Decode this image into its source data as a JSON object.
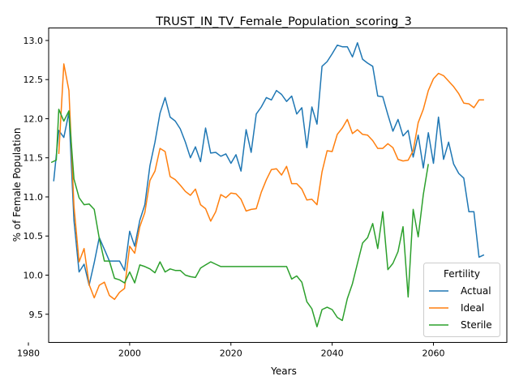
{
  "chart_data": {
    "type": "line",
    "title": "TRUST_IN_TV_Female_Population_scoring_3",
    "xlabel": "Years",
    "ylabel": "% of Female Population",
    "xlim": [
      1984,
      2074.5
    ],
    "ylim": [
      9.14,
      13.16
    ],
    "xticks": [
      1980,
      2000,
      2020,
      2040,
      2060
    ],
    "yticks": [
      9.5,
      10.0,
      10.5,
      11.0,
      11.5,
      12.0,
      12.5,
      13.0
    ],
    "grid": false,
    "legend": {
      "title": "Fertility",
      "placement": "lower-right"
    },
    "series": [
      {
        "name": "Actual",
        "color": "#1f77b4",
        "points": [
          [
            1985,
            11.2
          ],
          [
            1986,
            11.85
          ],
          [
            1987,
            11.76
          ],
          [
            1988,
            12.08
          ],
          [
            1989,
            10.7
          ],
          [
            1990,
            10.04
          ],
          [
            1991,
            10.14
          ],
          [
            1992,
            9.87
          ],
          [
            1993,
            10.16
          ],
          [
            1994,
            10.48
          ],
          [
            1995,
            10.33
          ],
          [
            1996,
            10.18
          ],
          [
            1997,
            10.18
          ],
          [
            1998,
            10.18
          ],
          [
            1999,
            10.06
          ],
          [
            2000,
            10.56
          ],
          [
            2001,
            10.37
          ],
          [
            2002,
            10.7
          ],
          [
            2003,
            10.9
          ],
          [
            2004,
            11.4
          ],
          [
            2005,
            11.7
          ],
          [
            2006,
            12.07
          ],
          [
            2007,
            12.27
          ],
          [
            2008,
            12.02
          ],
          [
            2009,
            11.97
          ],
          [
            2010,
            11.87
          ],
          [
            2011,
            11.7
          ],
          [
            2012,
            11.5
          ],
          [
            2013,
            11.64
          ],
          [
            2014,
            11.45
          ],
          [
            2015,
            11.88
          ],
          [
            2016,
            11.56
          ],
          [
            2017,
            11.57
          ],
          [
            2018,
            11.52
          ],
          [
            2019,
            11.55
          ],
          [
            2020,
            11.43
          ],
          [
            2021,
            11.54
          ],
          [
            2022,
            11.33
          ],
          [
            2023,
            11.86
          ],
          [
            2024,
            11.57
          ],
          [
            2025,
            12.06
          ],
          [
            2026,
            12.15
          ],
          [
            2027,
            12.27
          ],
          [
            2028,
            12.24
          ],
          [
            2029,
            12.36
          ],
          [
            2030,
            12.31
          ],
          [
            2031,
            12.22
          ],
          [
            2032,
            12.29
          ],
          [
            2033,
            12.06
          ],
          [
            2034,
            12.14
          ],
          [
            2035,
            11.63
          ],
          [
            2036,
            12.15
          ],
          [
            2037,
            11.93
          ],
          [
            2038,
            12.67
          ],
          [
            2039,
            12.73
          ],
          [
            2040,
            12.83
          ],
          [
            2041,
            12.94
          ],
          [
            2042,
            12.92
          ],
          [
            2043,
            12.92
          ],
          [
            2044,
            12.79
          ],
          [
            2045,
            12.97
          ],
          [
            2046,
            12.76
          ],
          [
            2047,
            12.71
          ],
          [
            2048,
            12.67
          ],
          [
            2049,
            12.29
          ],
          [
            2050,
            12.28
          ],
          [
            2051,
            12.05
          ],
          [
            2052,
            11.84
          ],
          [
            2053,
            11.99
          ],
          [
            2054,
            11.78
          ],
          [
            2055,
            11.85
          ],
          [
            2056,
            11.51
          ],
          [
            2057,
            11.79
          ],
          [
            2058,
            11.37
          ],
          [
            2059,
            11.82
          ],
          [
            2060,
            11.43
          ],
          [
            2061,
            12.02
          ],
          [
            2062,
            11.48
          ],
          [
            2063,
            11.7
          ],
          [
            2064,
            11.42
          ],
          [
            2065,
            11.3
          ],
          [
            2066,
            11.24
          ],
          [
            2067,
            10.81
          ],
          [
            2068,
            10.81
          ],
          [
            2069,
            10.23
          ],
          [
            2070,
            10.26
          ]
        ]
      },
      {
        "name": "Ideal",
        "color": "#ff7f0e",
        "points": [
          [
            1986,
            11.55
          ],
          [
            1987,
            12.7
          ],
          [
            1988,
            12.36
          ],
          [
            1989,
            10.88
          ],
          [
            1990,
            10.17
          ],
          [
            1991,
            10.34
          ],
          [
            1992,
            9.88
          ],
          [
            1993,
            9.71
          ],
          [
            1994,
            9.87
          ],
          [
            1995,
            9.91
          ],
          [
            1996,
            9.74
          ],
          [
            1997,
            9.69
          ],
          [
            1998,
            9.78
          ],
          [
            1999,
            9.83
          ],
          [
            2000,
            10.37
          ],
          [
            2001,
            10.28
          ],
          [
            2002,
            10.62
          ],
          [
            2003,
            10.8
          ],
          [
            2004,
            11.21
          ],
          [
            2005,
            11.33
          ],
          [
            2006,
            11.62
          ],
          [
            2007,
            11.58
          ],
          [
            2008,
            11.26
          ],
          [
            2009,
            11.22
          ],
          [
            2010,
            11.15
          ],
          [
            2011,
            11.07
          ],
          [
            2012,
            11.02
          ],
          [
            2013,
            11.1
          ],
          [
            2014,
            10.9
          ],
          [
            2015,
            10.85
          ],
          [
            2016,
            10.69
          ],
          [
            2017,
            10.81
          ],
          [
            2018,
            11.03
          ],
          [
            2019,
            10.99
          ],
          [
            2020,
            11.05
          ],
          [
            2021,
            11.04
          ],
          [
            2022,
            10.97
          ],
          [
            2023,
            10.82
          ],
          [
            2024,
            10.84
          ],
          [
            2025,
            10.85
          ],
          [
            2026,
            11.06
          ],
          [
            2027,
            11.22
          ],
          [
            2028,
            11.35
          ],
          [
            2029,
            11.36
          ],
          [
            2030,
            11.28
          ],
          [
            2031,
            11.39
          ],
          [
            2032,
            11.17
          ],
          [
            2033,
            11.17
          ],
          [
            2034,
            11.1
          ],
          [
            2035,
            10.96
          ],
          [
            2036,
            10.97
          ],
          [
            2037,
            10.9
          ],
          [
            2038,
            11.32
          ],
          [
            2039,
            11.59
          ],
          [
            2040,
            11.58
          ],
          [
            2041,
            11.8
          ],
          [
            2042,
            11.88
          ],
          [
            2043,
            11.99
          ],
          [
            2044,
            11.81
          ],
          [
            2045,
            11.86
          ],
          [
            2046,
            11.8
          ],
          [
            2047,
            11.79
          ],
          [
            2048,
            11.72
          ],
          [
            2049,
            11.62
          ],
          [
            2050,
            11.62
          ],
          [
            2051,
            11.68
          ],
          [
            2052,
            11.63
          ],
          [
            2053,
            11.48
          ],
          [
            2054,
            11.46
          ],
          [
            2055,
            11.47
          ],
          [
            2056,
            11.59
          ],
          [
            2057,
            11.95
          ],
          [
            2058,
            12.12
          ],
          [
            2059,
            12.36
          ],
          [
            2060,
            12.51
          ],
          [
            2061,
            12.58
          ],
          [
            2062,
            12.55
          ],
          [
            2063,
            12.48
          ],
          [
            2064,
            12.41
          ],
          [
            2065,
            12.32
          ],
          [
            2066,
            12.2
          ],
          [
            2067,
            12.19
          ],
          [
            2068,
            12.14
          ],
          [
            2069,
            12.24
          ],
          [
            2070,
            12.24
          ]
        ]
      },
      {
        "name": "Sterile",
        "color": "#2ca02c",
        "points": [
          [
            1984.5,
            11.44
          ],
          [
            1985.5,
            11.47
          ],
          [
            1986,
            12.12
          ],
          [
            1987,
            11.97
          ],
          [
            1988,
            12.1
          ],
          [
            1989,
            11.23
          ],
          [
            1990,
            10.99
          ],
          [
            1991,
            10.9
          ],
          [
            1992,
            10.91
          ],
          [
            1993,
            10.84
          ],
          [
            1994,
            10.47
          ],
          [
            1995,
            10.18
          ],
          [
            1996,
            10.18
          ],
          [
            1997,
            9.96
          ],
          [
            1998,
            9.94
          ],
          [
            1999,
            9.9
          ],
          [
            2000,
            10.04
          ],
          [
            2001,
            9.9
          ],
          [
            2002,
            10.13
          ],
          [
            2003,
            10.11
          ],
          [
            2004,
            10.08
          ],
          [
            2005,
            10.03
          ],
          [
            2006,
            10.17
          ],
          [
            2007,
            10.04
          ],
          [
            2008,
            10.08
          ],
          [
            2009,
            10.06
          ],
          [
            2010,
            10.06
          ],
          [
            2011,
            10.0
          ],
          [
            2012,
            9.98
          ],
          [
            2013,
            9.97
          ],
          [
            2014,
            10.09
          ],
          [
            2015,
            10.13
          ],
          [
            2016,
            10.17
          ],
          [
            2017,
            10.14
          ],
          [
            2018,
            10.11
          ],
          [
            2019,
            10.11
          ],
          [
            2020,
            10.11
          ],
          [
            2021,
            10.11
          ],
          [
            2022,
            10.11
          ],
          [
            2023,
            10.11
          ],
          [
            2024,
            10.11
          ],
          [
            2025,
            10.11
          ],
          [
            2026,
            10.11
          ],
          [
            2027,
            10.11
          ],
          [
            2028,
            10.11
          ],
          [
            2029,
            10.11
          ],
          [
            2030,
            10.11
          ],
          [
            2031,
            10.11
          ],
          [
            2032,
            9.95
          ],
          [
            2033,
            9.99
          ],
          [
            2034,
            9.91
          ],
          [
            2035,
            9.66
          ],
          [
            2036,
            9.57
          ],
          [
            2037,
            9.34
          ],
          [
            2038,
            9.56
          ],
          [
            2039,
            9.59
          ],
          [
            2040,
            9.56
          ],
          [
            2041,
            9.46
          ],
          [
            2042,
            9.42
          ],
          [
            2043,
            9.7
          ],
          [
            2044,
            9.89
          ],
          [
            2045,
            10.15
          ],
          [
            2046,
            10.41
          ],
          [
            2047,
            10.48
          ],
          [
            2048,
            10.66
          ],
          [
            2049,
            10.34
          ],
          [
            2050,
            10.81
          ],
          [
            2051,
            10.07
          ],
          [
            2052,
            10.15
          ],
          [
            2053,
            10.3
          ],
          [
            2054,
            10.62
          ],
          [
            2055,
            9.72
          ],
          [
            2056,
            10.84
          ],
          [
            2057,
            10.49
          ],
          [
            2058,
            11.03
          ],
          [
            2059,
            11.42
          ]
        ]
      }
    ]
  }
}
